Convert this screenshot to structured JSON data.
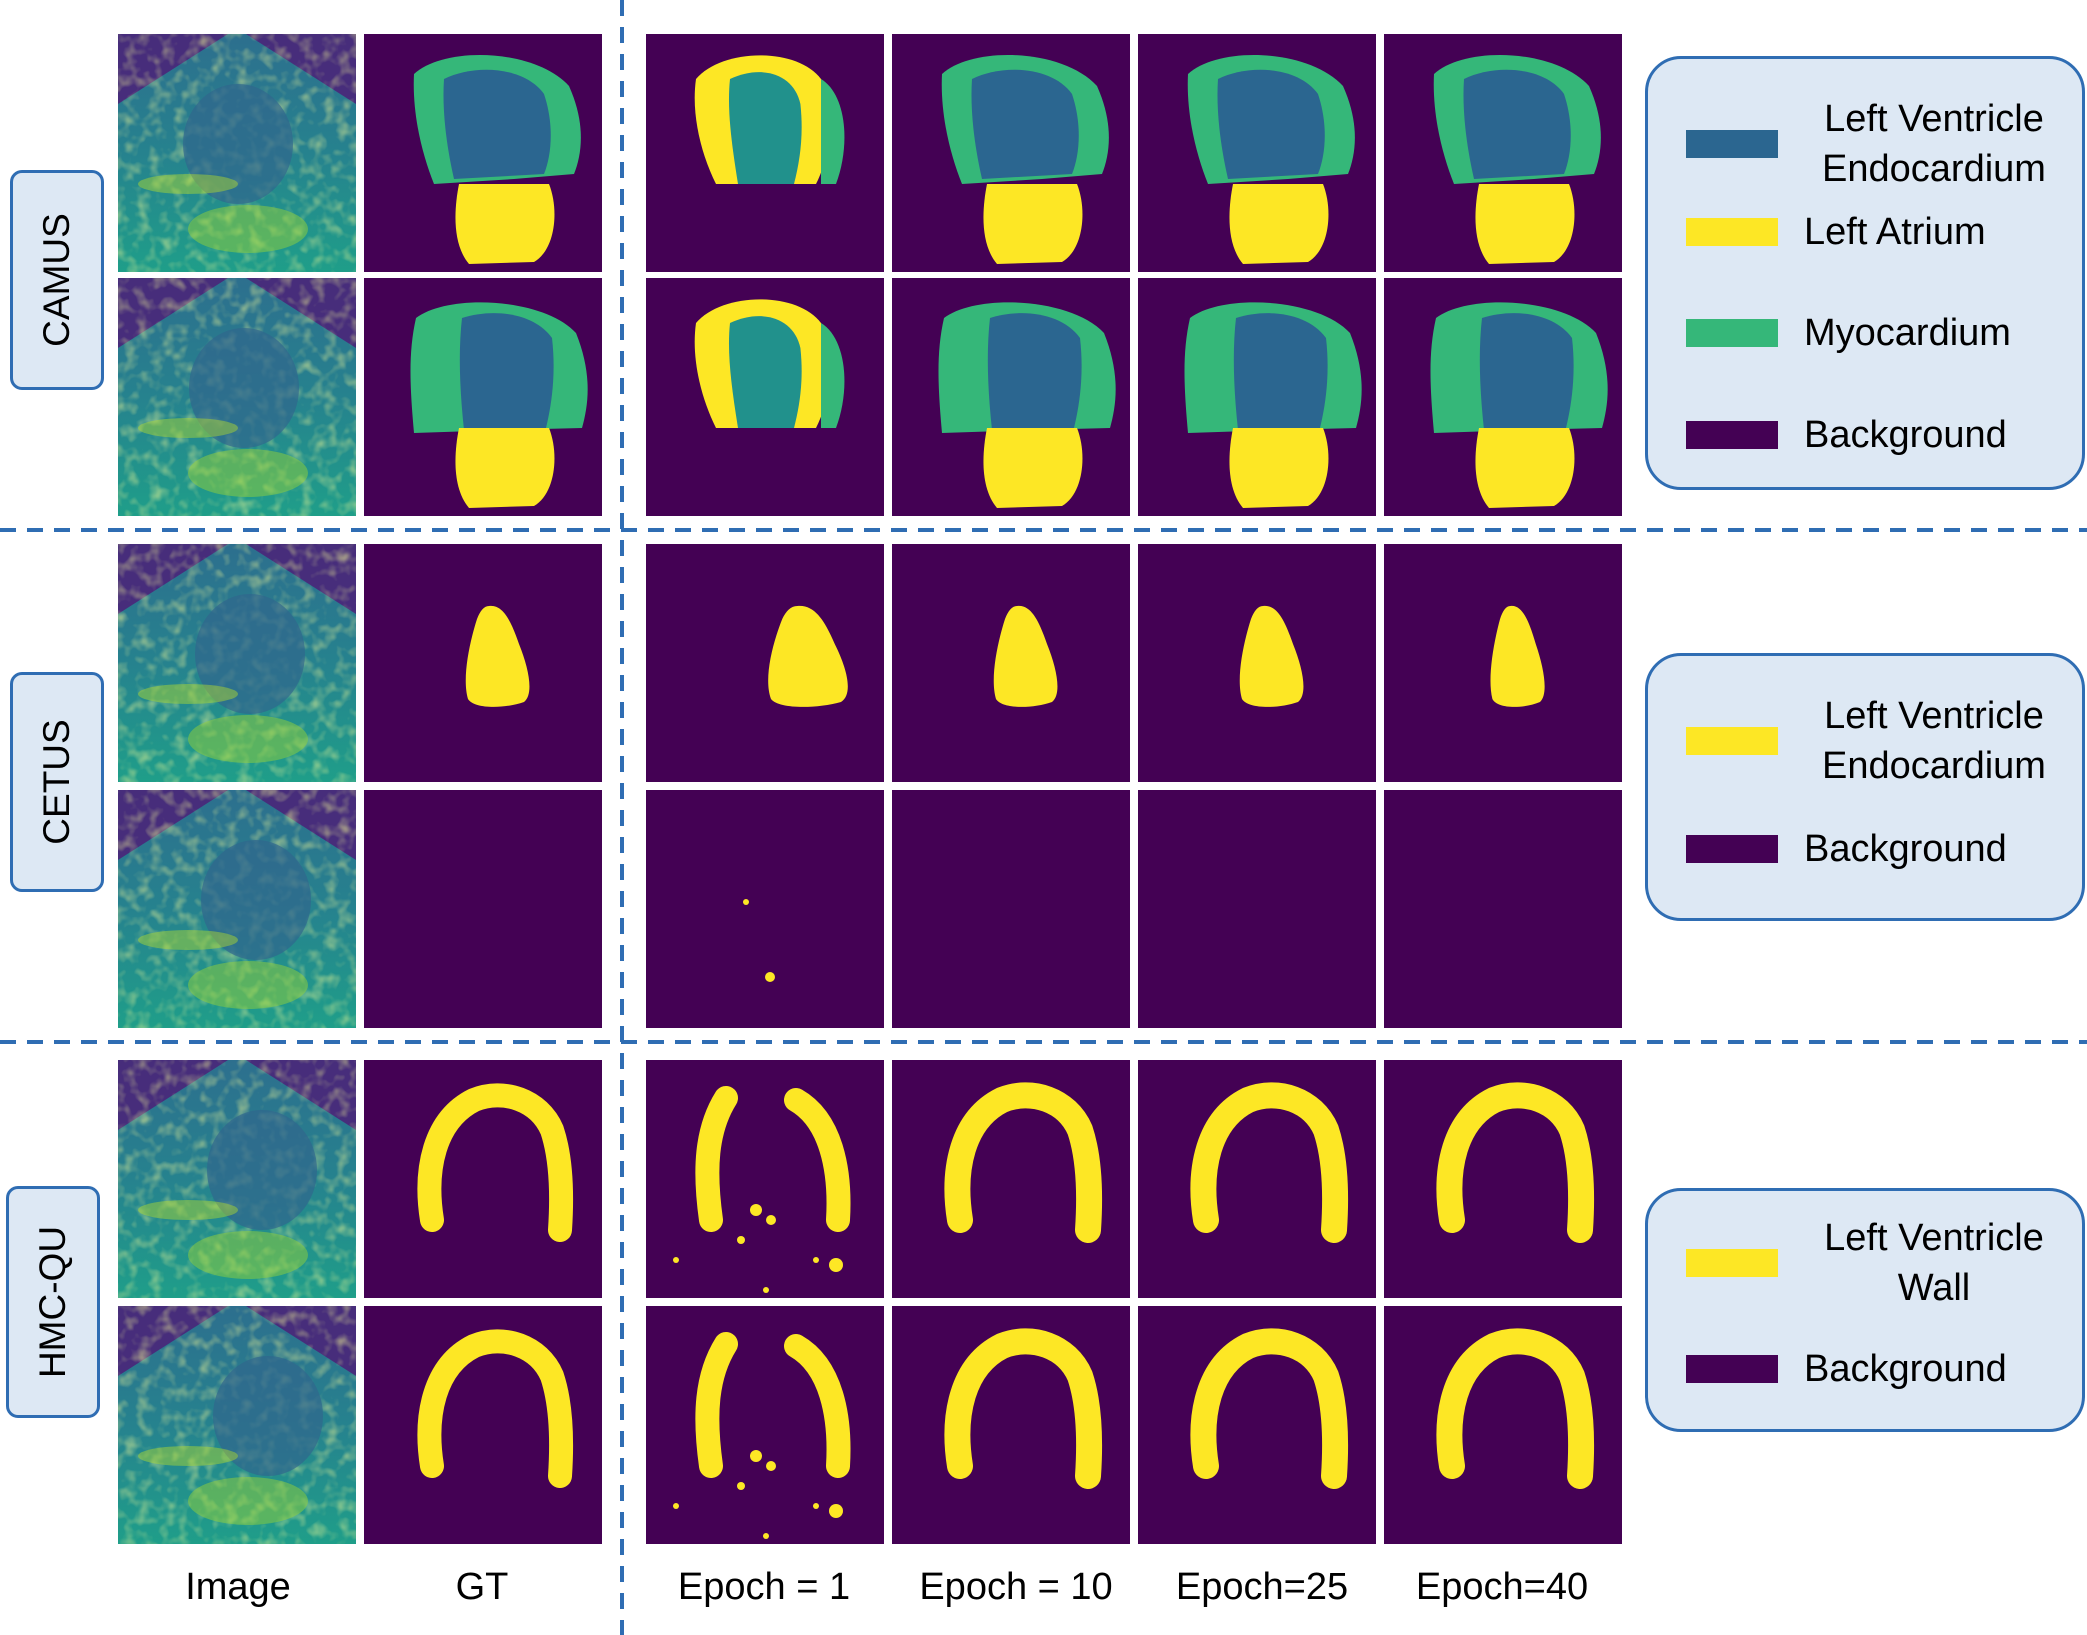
{
  "columns": [
    "Image",
    "GT",
    "Epoch = 1",
    "Epoch = 10",
    "Epoch=25",
    "Epoch=40"
  ],
  "datasets": [
    {
      "name": "CAMUS"
    },
    {
      "name": "CETUS"
    },
    {
      "name": "HMC-QU"
    }
  ],
  "legends": [
    {
      "items": [
        {
          "label": "Left Ventricle Endocardium",
          "color": "#2b6690"
        },
        {
          "label": "Left Atrium",
          "color": "#fde725"
        },
        {
          "label": "Myocardium",
          "color": "#35b779"
        },
        {
          "label": "Background",
          "color": "#440154"
        }
      ]
    },
    {
      "items": [
        {
          "label": "Left Ventricle Endocardium",
          "color": "#fde725"
        },
        {
          "label": "Background",
          "color": "#440154"
        }
      ]
    },
    {
      "items": [
        {
          "label": "Left Ventricle Wall",
          "color": "#fde725"
        },
        {
          "label": "Background",
          "color": "#440154"
        }
      ]
    }
  ],
  "colors": {
    "background": "#440154",
    "endocardium": "#2b6690",
    "endocardium_epoch1": "#21918c",
    "atrium": "#fde725",
    "myocardium": "#35b779",
    "ultrasound_bg": "#472d7b",
    "divider": "#2f6db3"
  }
}
